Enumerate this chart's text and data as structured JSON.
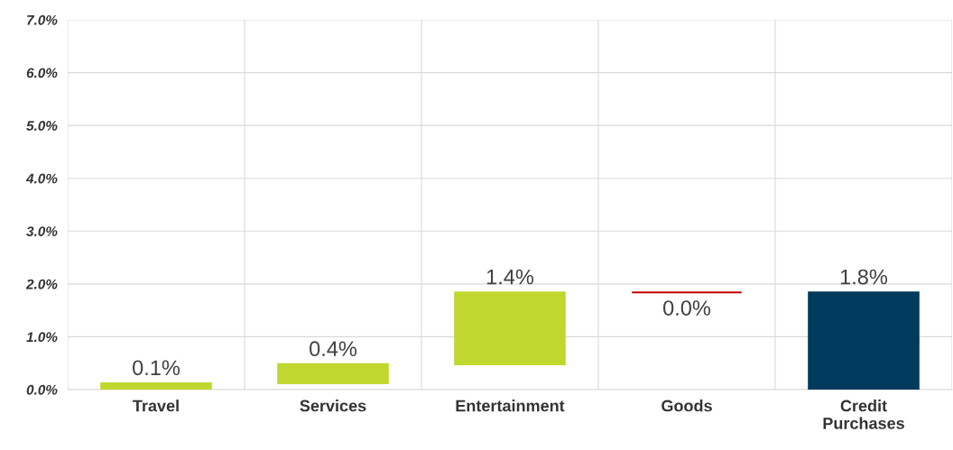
{
  "chart_data": {
    "type": "bar",
    "categories": [
      "Travel",
      "Services",
      "Entertainment",
      "Goods",
      "Credit\nPurchases"
    ],
    "values": [
      0.12,
      0.36,
      1.36,
      0.0,
      1.84
    ],
    "base": [
      0,
      0.12,
      0.48,
      1.84,
      0
    ],
    "colors": [
      "#c0d72f",
      "#c0d72f",
      "#c0d72f",
      "#c00000",
      "#003a5c"
    ],
    "value_labels": [
      "0.1%",
      "0.4%",
      "1.4%",
      "0.0%",
      "1.8%"
    ],
    "ylim": [
      0,
      7
    ],
    "yticks": [
      {
        "value": 0,
        "label": "0.0%"
      },
      {
        "value": 1,
        "label": "1.0%"
      },
      {
        "value": 2,
        "label": "2.0%"
      },
      {
        "value": 3,
        "label": "3.0%"
      },
      {
        "value": 4,
        "label": "4.0%"
      },
      {
        "value": 5,
        "label": "5.0%"
      },
      {
        "value": 6,
        "label": "6.0%"
      },
      {
        "value": 7,
        "label": "7.0%"
      }
    ],
    "grid": true
  }
}
